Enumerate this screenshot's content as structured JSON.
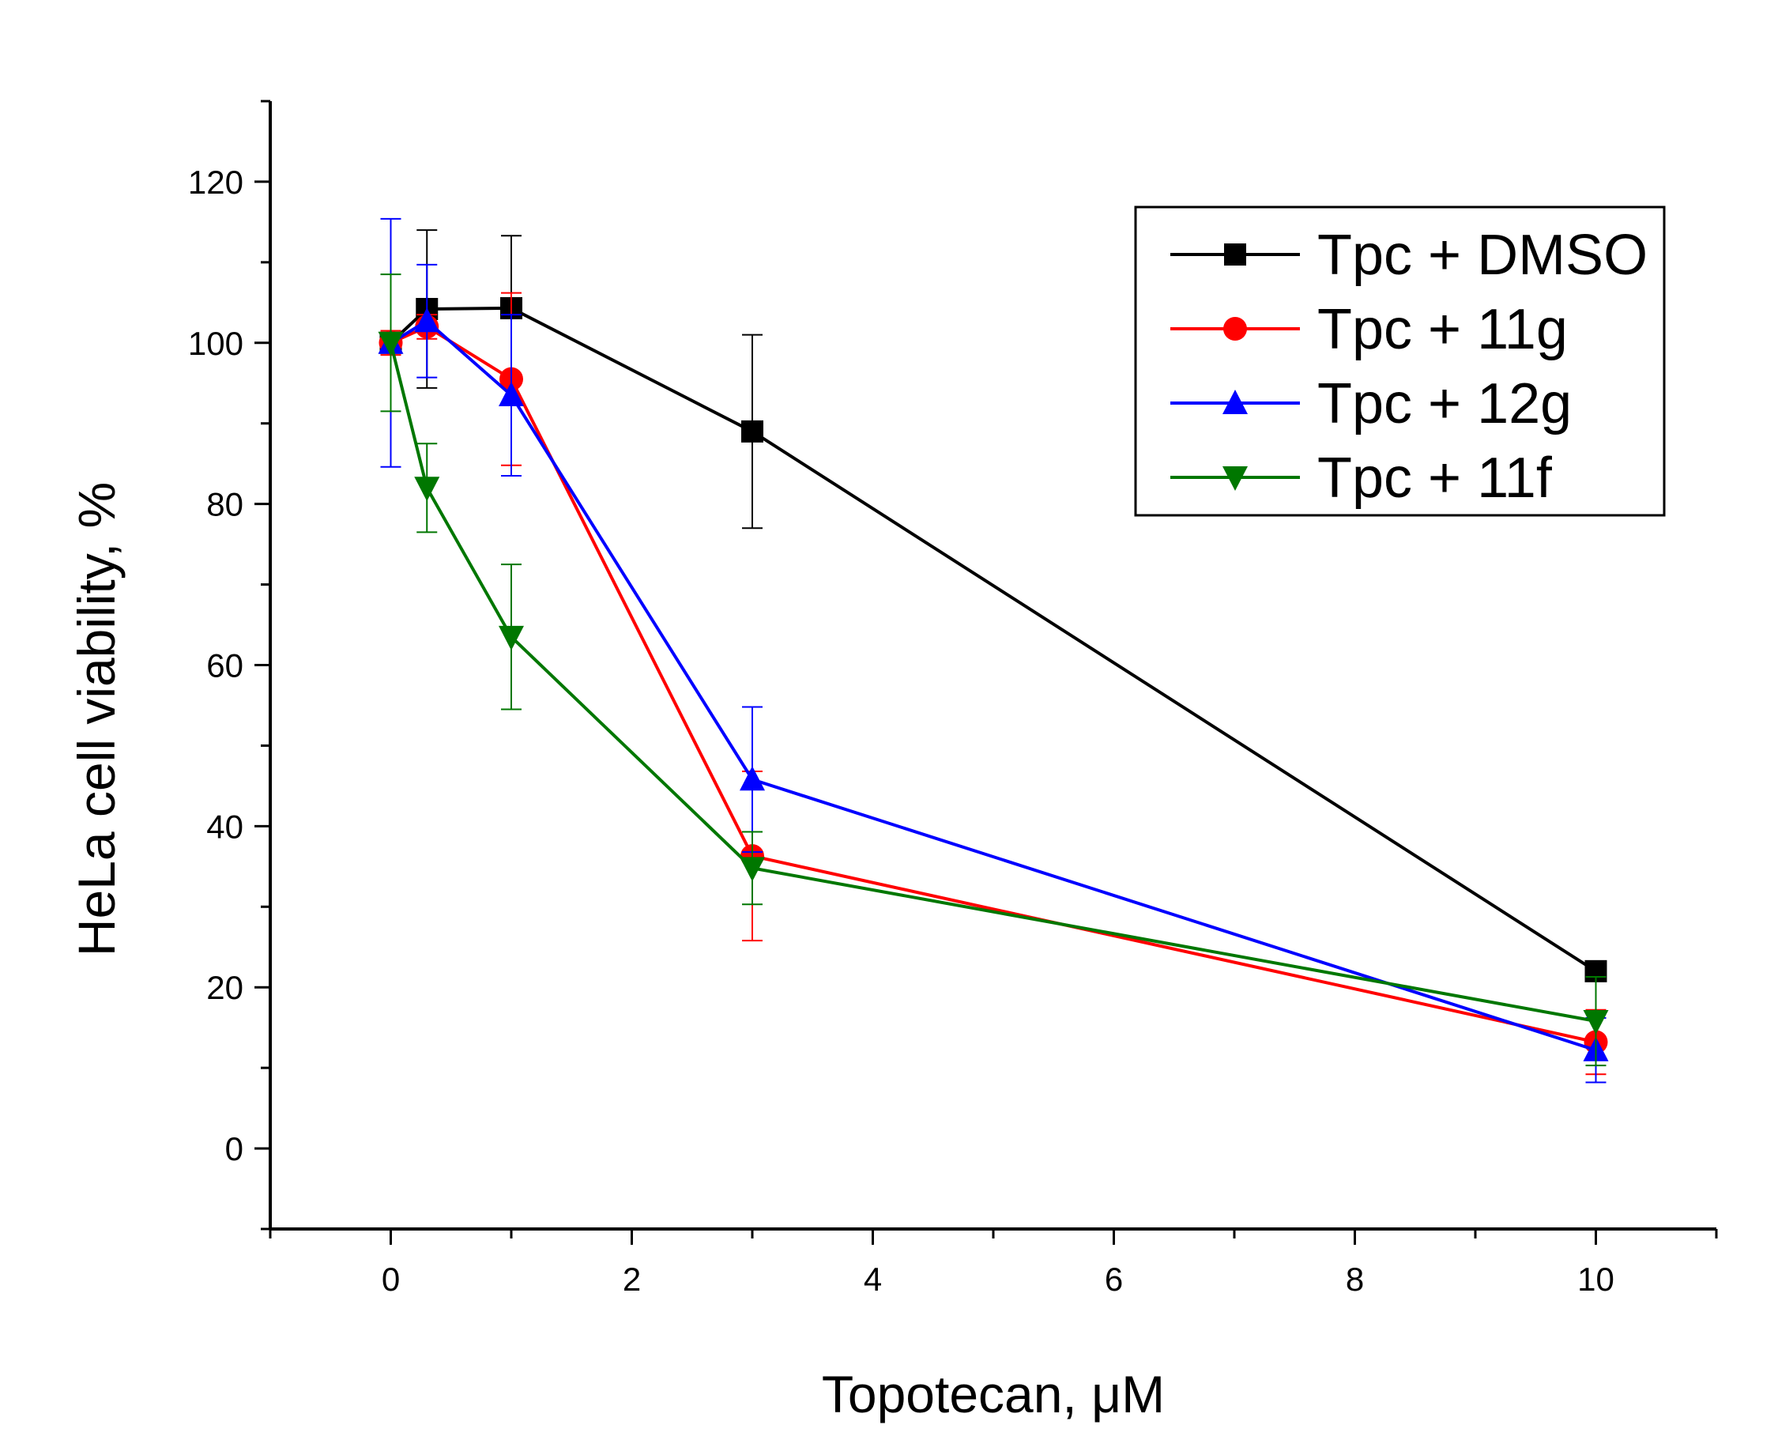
{
  "chart_data": {
    "type": "line",
    "title": "",
    "xlabel": "Topotecan, μM",
    "ylabel": "HeLa cell viability, %",
    "xlim": [
      -1,
      11
    ],
    "ylim": [
      -10,
      130
    ],
    "xticks": [
      0,
      2,
      4,
      6,
      8,
      10
    ],
    "xtick_labels": [
      "0",
      "2",
      "4",
      "6",
      "8",
      "10"
    ],
    "yticks": [
      0,
      20,
      40,
      60,
      80,
      100,
      120
    ],
    "ytick_labels": [
      "0",
      "20",
      "40",
      "60",
      "80",
      "100",
      "120"
    ],
    "grid": false,
    "legend_position": "top-right",
    "series": [
      {
        "name": "Tpc + DMSO",
        "color": "#000000",
        "marker": "square",
        "x": [
          0,
          0.3,
          1,
          3,
          10
        ],
        "y": [
          100,
          104.2,
          104.3,
          89,
          22
        ],
        "err": [
          1,
          9.8,
          9,
          12,
          0.5
        ]
      },
      {
        "name": "Tpc + 11g",
        "color": "#ff0000",
        "marker": "circle",
        "x": [
          0,
          0.3,
          1,
          3,
          10
        ],
        "y": [
          100,
          102,
          95.5,
          36.3,
          13.2
        ],
        "err": [
          1.5,
          1.5,
          10.7,
          10.5,
          4
        ]
      },
      {
        "name": "Tpc + 12g",
        "color": "#0000ff",
        "marker": "triangle-up",
        "x": [
          0,
          0.3,
          1,
          3,
          10
        ],
        "y": [
          100,
          102.7,
          93.5,
          45.8,
          12.2
        ],
        "err": [
          15.4,
          7,
          10,
          9,
          4
        ]
      },
      {
        "name": "Tpc + 11f",
        "color": "#007700",
        "marker": "triangle-down",
        "x": [
          0,
          0.3,
          1,
          3,
          10
        ],
        "y": [
          100,
          82,
          63.5,
          34.8,
          15.8
        ],
        "err": [
          8.5,
          5.5,
          9,
          4.5,
          5.5
        ]
      }
    ]
  }
}
